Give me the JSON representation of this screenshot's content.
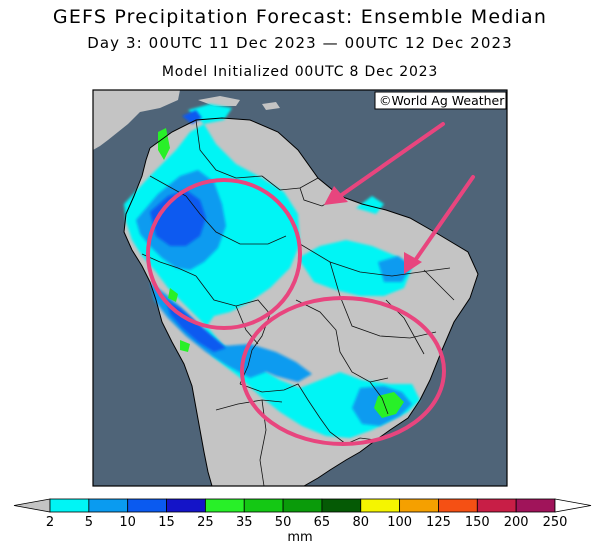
{
  "title": "GEFS Precipitation Forecast: Ensemble Median",
  "subtitle": "Day 3: 00UTC 11 Dec 2023 — 00UTC 12 Dec 2023",
  "initialized": "Model Initialized 00UTC 8 Dec 2023",
  "credit": "©World Ag Weather",
  "colorbar": {
    "unit": "mm",
    "labels": [
      "2",
      "5",
      "10",
      "15",
      "25",
      "35",
      "50",
      "65",
      "80",
      "100",
      "125",
      "150",
      "200",
      "250"
    ],
    "colors": [
      "#00f5f5",
      "#0a9bf0",
      "#0a5af0",
      "#1414c8",
      "#28f028",
      "#14c814",
      "#0a9b0a",
      "#055a05",
      "#f5f500",
      "#f5a000",
      "#f55014",
      "#c81e46",
      "#a0145a",
      "#f014f0",
      "#a050c8"
    ]
  },
  "colors": {
    "ocean": "#4f6478",
    "land": "#c4c4c4",
    "highlight": "#e8457e",
    "map_border": "#000000"
  }
}
